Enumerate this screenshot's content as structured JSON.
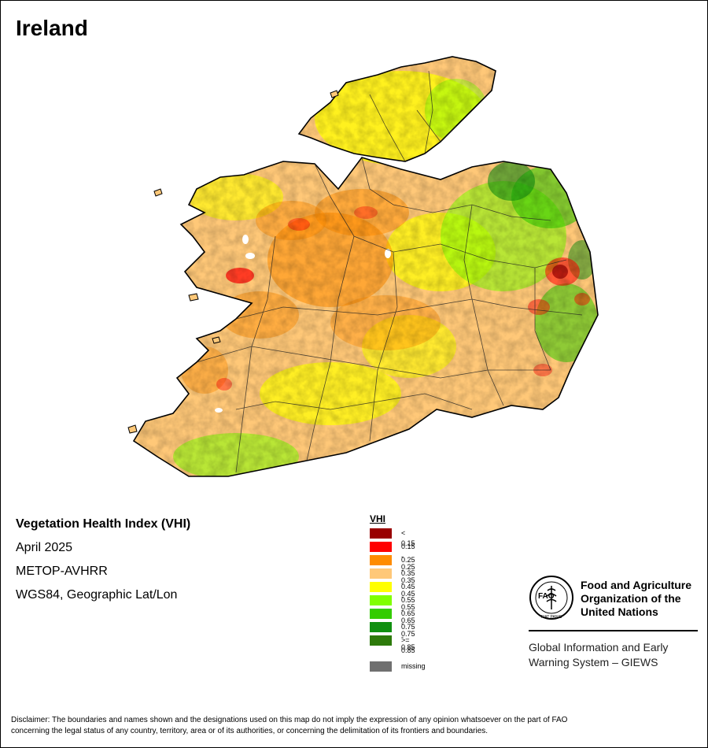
{
  "map": {
    "title": "Ireland",
    "product": "Vegetation Health Index (VHI)",
    "period": "April 2025",
    "sensor": "METOP-AVHRR",
    "projection": "WGS84, Geographic Lat/Lon"
  },
  "legend": {
    "title": "VHI",
    "classes": [
      {
        "label": "< 0.15",
        "color": "#990000"
      },
      {
        "label": "0.15 - 0.25",
        "color": "#ff0000"
      },
      {
        "label": "0.25 - 0.35",
        "color": "#ff8c00"
      },
      {
        "label": "0.35 - 0.45",
        "color": "#ffc878"
      },
      {
        "label": "0.45 - 0.55",
        "color": "#ffff00"
      },
      {
        "label": "0.55 - 0.65",
        "color": "#80ff00"
      },
      {
        "label": "0.65 - 0.75",
        "color": "#33cc00"
      },
      {
        "label": "0.75 - 0.85",
        "color": "#109010"
      },
      {
        "label": ">= 0.85",
        "color": "#2d7a0a"
      }
    ],
    "missing": {
      "label": "missing",
      "color": "#707070"
    }
  },
  "fao": {
    "logo_letters": "FAO",
    "logo_motto": "FIAT PANIS",
    "name_lines": [
      "Food and Agriculture",
      "Organization of the",
      "United Nations"
    ],
    "giews_lines": [
      "Global Information and Early",
      "Warning System – GIEWS"
    ]
  },
  "disclaimer": {
    "line1": "Disclaimer: The boundaries and names shown and the designations used on this map do not imply the expression of any opinion whatsoever on the part of FAO",
    "line2": "concerning the legal status of any country, territory, area or of its authorities, or concerning the delimitation of its frontiers and boundaries."
  }
}
